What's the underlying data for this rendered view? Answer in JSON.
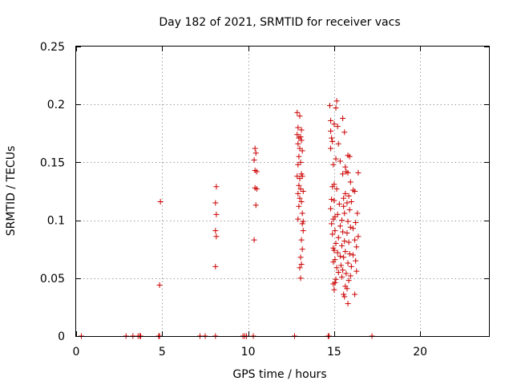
{
  "chart_data": {
    "type": "scatter",
    "title": "Day 182 of 2021, SRMTID for receiver vacs",
    "xlabel": "GPS time / hours",
    "ylabel": "SRMTID / TECUs",
    "xlim": [
      0,
      24
    ],
    "ylim": [
      0,
      0.25
    ],
    "xticks": [
      0,
      5,
      10,
      15,
      20
    ],
    "yticks": [
      0,
      0.05,
      0.1,
      0.15,
      0.2,
      0.25
    ],
    "xtick_labels": [
      "0",
      "5",
      "10",
      "15",
      "20"
    ],
    "ytick_labels": [
      "0",
      "0.05",
      "0.1",
      "0.15",
      "0.2",
      "0.25"
    ],
    "grid": true,
    "marker": "plus",
    "color": "#cc0000",
    "series": [
      {
        "name": "SRMTID",
        "points": [
          [
            0.3,
            0
          ],
          [
            2.9,
            0
          ],
          [
            3.3,
            0
          ],
          [
            3.6,
            0
          ],
          [
            3.7,
            0
          ],
          [
            3.75,
            0
          ],
          [
            4.8,
            0
          ],
          [
            4.85,
            0
          ],
          [
            7.2,
            0
          ],
          [
            7.5,
            0
          ],
          [
            8.1,
            0
          ],
          [
            9.7,
            0
          ],
          [
            9.8,
            0
          ],
          [
            9.9,
            0
          ],
          [
            10.3,
            0
          ],
          [
            12.7,
            0
          ],
          [
            14.65,
            0
          ],
          [
            14.7,
            0
          ],
          [
            17.2,
            0
          ],
          [
            4.9,
            0.116
          ],
          [
            4.85,
            0.044
          ],
          [
            8.15,
            0.129
          ],
          [
            8.1,
            0.115
          ],
          [
            8.15,
            0.105
          ],
          [
            8.1,
            0.091
          ],
          [
            8.15,
            0.086
          ],
          [
            8.1,
            0.06
          ],
          [
            10.4,
            0.162
          ],
          [
            10.45,
            0.158
          ],
          [
            10.35,
            0.152
          ],
          [
            10.4,
            0.143
          ],
          [
            10.5,
            0.142
          ],
          [
            10.4,
            0.128
          ],
          [
            10.5,
            0.127
          ],
          [
            10.45,
            0.113
          ],
          [
            10.35,
            0.083
          ],
          [
            12.85,
            0.193
          ],
          [
            13.0,
            0.19
          ],
          [
            12.9,
            0.18
          ],
          [
            13.1,
            0.178
          ],
          [
            12.85,
            0.174
          ],
          [
            12.95,
            0.171
          ],
          [
            13.05,
            0.172
          ],
          [
            13.1,
            0.169
          ],
          [
            12.9,
            0.166
          ],
          [
            13.0,
            0.162
          ],
          [
            13.15,
            0.16
          ],
          [
            12.95,
            0.155
          ],
          [
            13.05,
            0.15
          ],
          [
            12.9,
            0.148
          ],
          [
            13.1,
            0.14
          ],
          [
            12.85,
            0.138
          ],
          [
            13.0,
            0.136
          ],
          [
            13.15,
            0.138
          ],
          [
            12.95,
            0.13
          ],
          [
            13.05,
            0.127
          ],
          [
            13.2,
            0.125
          ],
          [
            12.9,
            0.123
          ],
          [
            13.0,
            0.119
          ],
          [
            13.1,
            0.116
          ],
          [
            12.95,
            0.112
          ],
          [
            12.9,
            0.101
          ],
          [
            13.15,
            0.097
          ],
          [
            13.2,
            0.091
          ],
          [
            13.1,
            0.083
          ],
          [
            13.15,
            0.075
          ],
          [
            13.05,
            0.068
          ],
          [
            13.1,
            0.062
          ],
          [
            13.0,
            0.059
          ],
          [
            13.05,
            0.05
          ],
          [
            13.2,
            0.099
          ],
          [
            13.15,
            0.106
          ],
          [
            14.75,
            0.199
          ],
          [
            15.15,
            0.203
          ],
          [
            15.1,
            0.197
          ],
          [
            15.5,
            0.188
          ],
          [
            14.8,
            0.186
          ],
          [
            15.0,
            0.183
          ],
          [
            15.2,
            0.181
          ],
          [
            14.8,
            0.177
          ],
          [
            15.6,
            0.176
          ],
          [
            14.85,
            0.171
          ],
          [
            14.9,
            0.168
          ],
          [
            15.25,
            0.166
          ],
          [
            14.8,
            0.162
          ],
          [
            15.8,
            0.156
          ],
          [
            15.9,
            0.155
          ],
          [
            15.1,
            0.153
          ],
          [
            15.35,
            0.151
          ],
          [
            14.95,
            0.148
          ],
          [
            15.65,
            0.146
          ],
          [
            15.7,
            0.142
          ],
          [
            15.8,
            0.141
          ],
          [
            16.4,
            0.141
          ],
          [
            15.5,
            0.14
          ],
          [
            15.95,
            0.133
          ],
          [
            15.0,
            0.131
          ],
          [
            14.9,
            0.129
          ],
          [
            15.15,
            0.127
          ],
          [
            16.1,
            0.126
          ],
          [
            16.2,
            0.125
          ],
          [
            15.65,
            0.123
          ],
          [
            15.85,
            0.121
          ],
          [
            15.55,
            0.119
          ],
          [
            14.85,
            0.118
          ],
          [
            15.0,
            0.117
          ],
          [
            15.75,
            0.115
          ],
          [
            16.0,
            0.116
          ],
          [
            15.3,
            0.114
          ],
          [
            15.55,
            0.112
          ],
          [
            14.8,
            0.11
          ],
          [
            15.9,
            0.109
          ],
          [
            15.6,
            0.106
          ],
          [
            16.35,
            0.106
          ],
          [
            15.2,
            0.105
          ],
          [
            15.05,
            0.103
          ],
          [
            14.95,
            0.101
          ],
          [
            15.45,
            0.1
          ],
          [
            15.8,
            0.099
          ],
          [
            16.25,
            0.098
          ],
          [
            14.85,
            0.097
          ],
          [
            15.35,
            0.095
          ],
          [
            15.95,
            0.094
          ],
          [
            16.1,
            0.093
          ],
          [
            15.05,
            0.091
          ],
          [
            15.5,
            0.09
          ],
          [
            15.75,
            0.089
          ],
          [
            14.9,
            0.088
          ],
          [
            16.4,
            0.086
          ],
          [
            15.25,
            0.085
          ],
          [
            16.2,
            0.083
          ],
          [
            15.6,
            0.082
          ],
          [
            15.85,
            0.081
          ],
          [
            15.1,
            0.08
          ],
          [
            15.45,
            0.078
          ],
          [
            16.3,
            0.077
          ],
          [
            14.95,
            0.076
          ],
          [
            15.0,
            0.074
          ],
          [
            15.65,
            0.073
          ],
          [
            15.2,
            0.072
          ],
          [
            15.9,
            0.071
          ],
          [
            16.1,
            0.07
          ],
          [
            15.35,
            0.069
          ],
          [
            15.55,
            0.068
          ],
          [
            15.05,
            0.066
          ],
          [
            16.25,
            0.065
          ],
          [
            14.95,
            0.064
          ],
          [
            15.8,
            0.063
          ],
          [
            15.4,
            0.061
          ],
          [
            16.0,
            0.06
          ],
          [
            15.15,
            0.059
          ],
          [
            15.5,
            0.057
          ],
          [
            16.3,
            0.056
          ],
          [
            15.25,
            0.055
          ],
          [
            15.7,
            0.054
          ],
          [
            15.95,
            0.052
          ],
          [
            15.45,
            0.051
          ],
          [
            15.1,
            0.049
          ],
          [
            15.85,
            0.048
          ],
          [
            15.05,
            0.046
          ],
          [
            14.95,
            0.045
          ],
          [
            15.65,
            0.043
          ],
          [
            15.75,
            0.041
          ],
          [
            15.0,
            0.04
          ],
          [
            15.55,
            0.036
          ],
          [
            16.2,
            0.036
          ],
          [
            15.6,
            0.034
          ],
          [
            15.8,
            0.028
          ]
        ]
      }
    ]
  }
}
